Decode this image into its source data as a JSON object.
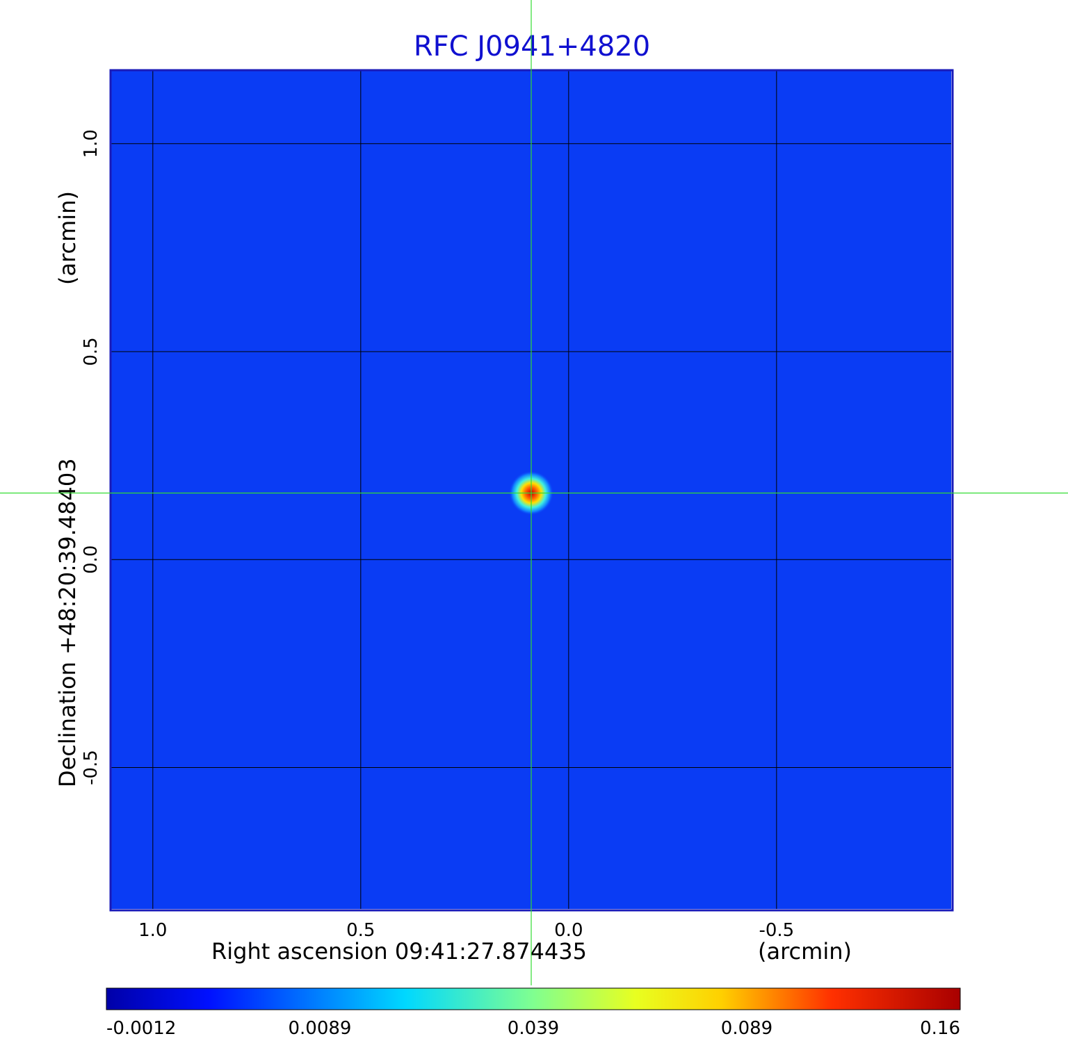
{
  "chart_data": {
    "type": "heatmap",
    "title": "RFC J0941+4820",
    "xlabel": "Right ascension  09:41:27.874435",
    "xunit": "(arcmin)",
    "ylabel": "Declination  +48:20:39.48403",
    "yunit": "(arcmin)",
    "x_ticks": [
      "1.0",
      "0.5",
      "0.0",
      "-0.5"
    ],
    "y_ticks": [
      "1.0",
      "0.5",
      "0.0",
      "-0.5"
    ],
    "x_tick_values": [
      1.0,
      0.5,
      0.0,
      -0.5
    ],
    "y_tick_values": [
      1.0,
      0.5,
      0.0,
      -0.5
    ],
    "xlim": [
      1.1,
      -0.92
    ],
    "ylim": [
      -0.84,
      1.175
    ],
    "source_peak": {
      "x": 0.09,
      "y": 0.16
    },
    "crosshair": {
      "x": 0.09,
      "y": 0.16
    },
    "colorbar": {
      "ticks": [
        "-0.0012",
        "0.0089",
        "0.039",
        "0.089",
        "0.16"
      ],
      "colormap": "jet"
    },
    "grid": true,
    "colors": {
      "title": "#1010d0",
      "frame": "#1a1ab8",
      "background_field": "#0a3cf4",
      "grid": "#000000",
      "crosshair": "#33dd33"
    }
  }
}
